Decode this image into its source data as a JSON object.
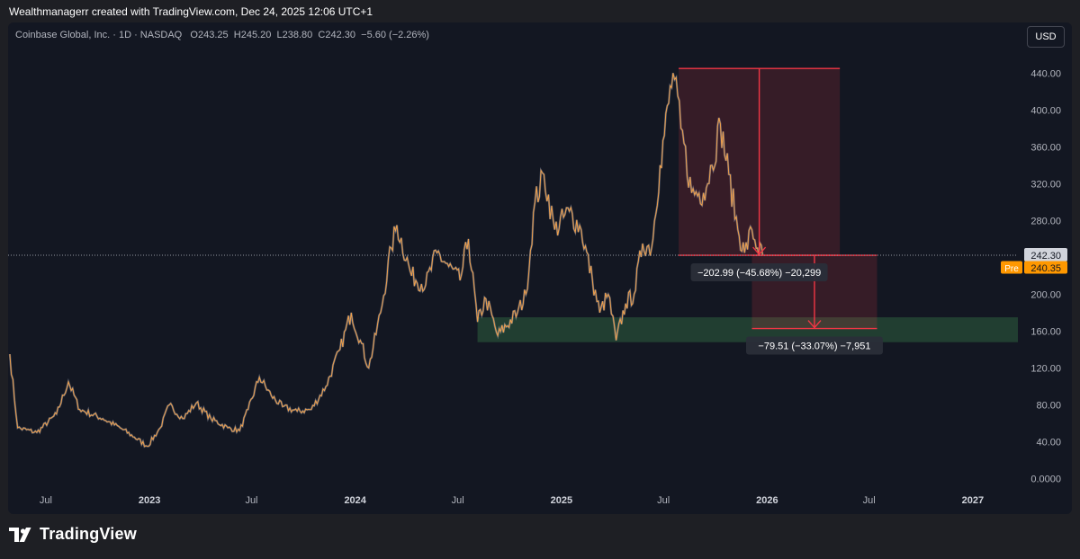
{
  "caption": "Wealthmanagerr created with TradingView.com, Dec 24, 2025 12:06 UTC+1",
  "legend": {
    "symbol": "Coinbase Global, Inc. · 1D · NASDAQ",
    "open_label": "O",
    "open": "243.25",
    "high_label": "H",
    "high": "245.20",
    "low_label": "L",
    "low": "238.80",
    "close_label": "C",
    "close": "242.30",
    "change": "−5.60 (−2.26%)"
  },
  "currency": "USD",
  "brand": "TradingView",
  "colors": {
    "background": "#131722",
    "candle": "#f0a04b",
    "candle_dim": "#8d93a8",
    "red_box": "#f23645",
    "green_box": "#2e5e3e",
    "pre_badge": "#ff9800"
  },
  "chart_data": {
    "type": "line",
    "ylim": [
      0,
      460
    ],
    "y_ticks": [
      "440.00",
      "400.00",
      "360.00",
      "320.00",
      "280.00",
      "240.00",
      "200.00",
      "160.00",
      "120.00",
      "80.00",
      "40.00",
      "0.0000"
    ],
    "y_tick_values": [
      440,
      400,
      360,
      320,
      280,
      240,
      200,
      160,
      120,
      80,
      40,
      0
    ],
    "x_ticks": [
      "Jul",
      "2023",
      "Jul",
      "2024",
      "Jul",
      "2025",
      "Jul",
      "2026",
      "Jul",
      "2027"
    ],
    "x_tick_dates": [
      "2022-07-01",
      "2023-01-01",
      "2023-07-01",
      "2024-01-01",
      "2024-07-01",
      "2025-01-01",
      "2025-07-01",
      "2026-01-01",
      "2026-07-01",
      "2027-01-01"
    ],
    "x_range": [
      "2022-04-25",
      "2027-03-22"
    ],
    "price_series": [
      [
        "2022-04-28",
        135
      ],
      [
        "2022-05-12",
        55
      ],
      [
        "2022-06-15",
        50
      ],
      [
        "2022-07-20",
        70
      ],
      [
        "2022-08-10",
        105
      ],
      [
        "2022-08-30",
        75
      ],
      [
        "2022-10-10",
        65
      ],
      [
        "2022-11-10",
        55
      ],
      [
        "2022-12-05",
        45
      ],
      [
        "2022-12-28",
        35
      ],
      [
        "2023-01-20",
        55
      ],
      [
        "2023-02-05",
        80
      ],
      [
        "2023-03-01",
        65
      ],
      [
        "2023-03-25",
        82
      ],
      [
        "2023-04-20",
        65
      ],
      [
        "2023-05-20",
        55
      ],
      [
        "2023-06-10",
        52
      ],
      [
        "2023-06-25",
        75
      ],
      [
        "2023-07-15",
        110
      ],
      [
        "2023-08-05",
        90
      ],
      [
        "2023-08-25",
        78
      ],
      [
        "2023-09-20",
        73
      ],
      [
        "2023-10-15",
        75
      ],
      [
        "2023-11-10",
        100
      ],
      [
        "2023-12-05",
        140
      ],
      [
        "2023-12-25",
        180
      ],
      [
        "2024-01-10",
        150
      ],
      [
        "2024-01-25",
        120
      ],
      [
        "2024-02-15",
        180
      ],
      [
        "2024-03-05",
        250
      ],
      [
        "2024-03-15",
        275
      ],
      [
        "2024-04-10",
        220
      ],
      [
        "2024-05-05",
        210
      ],
      [
        "2024-05-25",
        245
      ],
      [
        "2024-06-15",
        230
      ],
      [
        "2024-07-05",
        215
      ],
      [
        "2024-07-20",
        260
      ],
      [
        "2024-08-05",
        170
      ],
      [
        "2024-08-20",
        195
      ],
      [
        "2024-09-10",
        155
      ],
      [
        "2024-10-15",
        180
      ],
      [
        "2024-10-30",
        200
      ],
      [
        "2024-11-15",
        300
      ],
      [
        "2024-12-01",
        330
      ],
      [
        "2024-12-20",
        270
      ],
      [
        "2025-01-15",
        290
      ],
      [
        "2025-02-05",
        270
      ],
      [
        "2025-02-25",
        215
      ],
      [
        "2025-03-10",
        180
      ],
      [
        "2025-03-25",
        200
      ],
      [
        "2025-04-08",
        150
      ],
      [
        "2025-04-25",
        190
      ],
      [
        "2025-05-10",
        200
      ],
      [
        "2025-05-25",
        255
      ],
      [
        "2025-06-10",
        250
      ],
      [
        "2025-06-25",
        340
      ],
      [
        "2025-07-18",
        440
      ],
      [
        "2025-08-01",
        380
      ],
      [
        "2025-08-20",
        310
      ],
      [
        "2025-09-10",
        310
      ],
      [
        "2025-09-25",
        340
      ],
      [
        "2025-10-10",
        385
      ],
      [
        "2025-10-25",
        330
      ],
      [
        "2025-11-10",
        270
      ],
      [
        "2025-11-22",
        245
      ],
      [
        "2025-12-05",
        270
      ],
      [
        "2025-12-15",
        250
      ],
      [
        "2025-12-24",
        242
      ]
    ],
    "last_price": "242.30",
    "pre_market": {
      "label": "Pre",
      "value": "240.35"
    },
    "measurements": [
      {
        "from_price": 445,
        "to_price": 242.3,
        "start": "2025-07-28",
        "end": "2026-05-10",
        "label": "−202.99 (−45.68%) −20,299"
      },
      {
        "from_price": 242.3,
        "to_price": 162.8,
        "start": "2025-12-05",
        "end": "2026-07-15",
        "label": "−79.51 (−33.07%) −7,951"
      }
    ],
    "support_zone": {
      "low": 148,
      "high": 175,
      "start": "2024-08-05",
      "end": "2027-03-22"
    },
    "grid": false
  }
}
